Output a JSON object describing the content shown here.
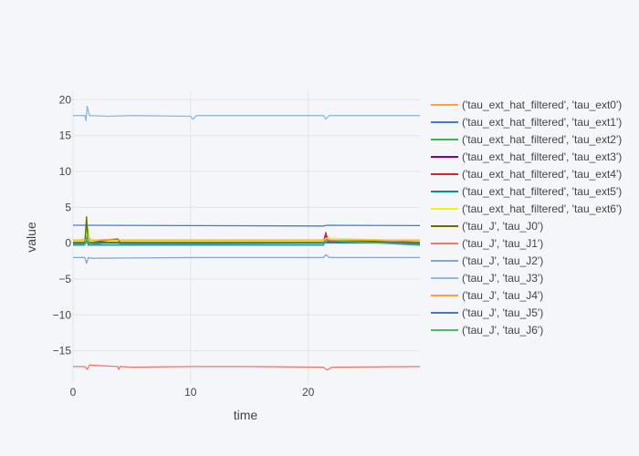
{
  "chart_data": {
    "type": "line",
    "xlabel": "time",
    "ylabel": "value",
    "xlim": [
      0,
      29.5
    ],
    "ylim": [
      -19.5,
      21.2
    ],
    "xticks": [
      0,
      10,
      20
    ],
    "xtick_labels": [
      "0",
      "10",
      "20"
    ],
    "yticks": [
      20,
      15,
      10,
      5,
      0,
      -5,
      -10,
      -15
    ],
    "ytick_labels": [
      "20",
      "15",
      "10",
      "5",
      "0",
      "−5",
      "−10",
      "−15"
    ],
    "grid": true,
    "legend_position": "right",
    "series": [
      {
        "name": "('tau_ext_hat_filtered', 'tau_ext0')",
        "color": "#ff9f40",
        "x": [
          0,
          1.0,
          1.2,
          1.5,
          3.8,
          4.0,
          10,
          21.3,
          21.5,
          29.5
        ],
        "y": [
          0.4,
          0.5,
          1.5,
          0.4,
          0.6,
          0.4,
          0.4,
          0.3,
          0.4,
          0.4
        ]
      },
      {
        "name": "('tau_ext_hat_filtered', 'tau_ext1')",
        "color": "#3a7fcf",
        "x": [
          0,
          1.0,
          10,
          21.3,
          21.6,
          29.5
        ],
        "y": [
          2.5,
          2.5,
          2.45,
          2.4,
          2.5,
          2.45
        ]
      },
      {
        "name": "('tau_ext_hat_filtered', 'tau_ext2')",
        "color": "#3cb44b",
        "x": [
          0,
          1.0,
          1.2,
          1.4,
          3.8,
          4.0,
          10,
          21.3,
          21.5,
          29.5
        ],
        "y": [
          -0.1,
          -0.1,
          2.5,
          -0.2,
          0.3,
          -0.1,
          -0.1,
          -0.2,
          0.2,
          -0.1
        ]
      },
      {
        "name": "('tau_ext_hat_filtered', 'tau_ext3')",
        "color": "#8b008b",
        "x": [
          0,
          1.0,
          1.2,
          1.4,
          10,
          21.3,
          21.5,
          21.7,
          29.5
        ],
        "y": [
          0.1,
          0.1,
          0.7,
          0.1,
          0.1,
          0.1,
          1.0,
          0.1,
          0.1
        ]
      },
      {
        "name": "('tau_ext_hat_filtered', 'tau_ext4')",
        "color": "#d62728",
        "x": [
          0,
          1.0,
          1.2,
          1.4,
          10,
          21.3,
          21.5,
          21.7,
          29.5
        ],
        "y": [
          0.2,
          0.2,
          1.0,
          0.2,
          0.2,
          0.2,
          1.5,
          0.2,
          0.2
        ]
      },
      {
        "name": "('tau_ext_hat_filtered', 'tau_ext5')",
        "color": "#0f8a8a",
        "x": [
          0,
          1.0,
          1.2,
          1.4,
          10,
          21.3,
          21.5,
          29.5
        ],
        "y": [
          -0.2,
          -0.2,
          0.5,
          -0.2,
          -0.2,
          -0.2,
          0.5,
          -0.2
        ]
      },
      {
        "name": "('tau_ext_hat_filtered', 'tau_ext6')",
        "color": "#f5f500",
        "x": [
          0,
          1.0,
          1.2,
          1.4,
          10,
          21.3,
          21.5,
          29.5
        ],
        "y": [
          0.3,
          0.3,
          1.8,
          0.3,
          0.3,
          0.3,
          0.7,
          0.3
        ]
      },
      {
        "name": "('tau_J', 'tau_J0')",
        "color": "#6b6b00",
        "x": [
          0,
          1.0,
          1.15,
          1.3,
          1.5,
          3.8,
          4.0,
          10,
          21.3,
          21.5,
          29.5
        ],
        "y": [
          0.1,
          0.1,
          3.7,
          -0.3,
          0.1,
          0.6,
          0.1,
          0.1,
          0.1,
          0.4,
          0.1
        ]
      },
      {
        "name": "('tau_J', 'tau_J1')",
        "color": "#f07a6a",
        "x": [
          0,
          1.0,
          1.2,
          1.4,
          3.8,
          3.9,
          4.0,
          5.0,
          10,
          15,
          21.3,
          21.6,
          22.0,
          29.5
        ],
        "y": [
          -17.2,
          -17.2,
          -17.6,
          -17.0,
          -17.2,
          -17.6,
          -17.2,
          -17.3,
          -17.2,
          -17.2,
          -17.3,
          -17.7,
          -17.3,
          -17.2
        ]
      },
      {
        "name": "('tau_J', 'tau_J2')",
        "color": "#7fa7d9",
        "x": [
          0,
          1.0,
          1.15,
          1.3,
          1.5,
          10,
          21.3,
          21.5,
          21.8,
          29.5
        ],
        "y": [
          -2.0,
          -2.0,
          -2.8,
          -2.0,
          -2.1,
          -2.0,
          -2.0,
          -1.6,
          -2.0,
          -2.0
        ]
      },
      {
        "name": "('tau_J', 'tau_J3')",
        "color": "#8fb9de",
        "x": [
          0,
          1.0,
          1.1,
          1.2,
          1.4,
          3.0,
          5.0,
          10,
          10.2,
          10.5,
          21.3,
          21.5,
          21.8,
          29.5
        ],
        "y": [
          17.8,
          17.8,
          17.1,
          19.1,
          17.8,
          17.7,
          17.8,
          17.7,
          17.3,
          17.8,
          17.8,
          17.3,
          17.8,
          17.8
        ]
      },
      {
        "name": "('tau_J', 'tau_J4')",
        "color": "#ffa14a",
        "x": [
          0,
          10,
          29.5
        ],
        "y": [
          0.45,
          0.45,
          0.45
        ]
      },
      {
        "name": "('tau_J', 'tau_J5')",
        "color": "#3f7cc6",
        "x": [
          0,
          10,
          29.5
        ],
        "y": [
          0.05,
          0.05,
          0.05
        ]
      },
      {
        "name": "('tau_J', 'tau_J6')",
        "color": "#4cbb6a",
        "x": [
          0,
          1.0,
          1.2,
          1.4,
          10,
          21.3,
          21.5,
          29.5
        ],
        "y": [
          -0.3,
          -0.3,
          1.2,
          -0.3,
          -0.3,
          -0.3,
          0.4,
          -0.3
        ]
      }
    ]
  }
}
